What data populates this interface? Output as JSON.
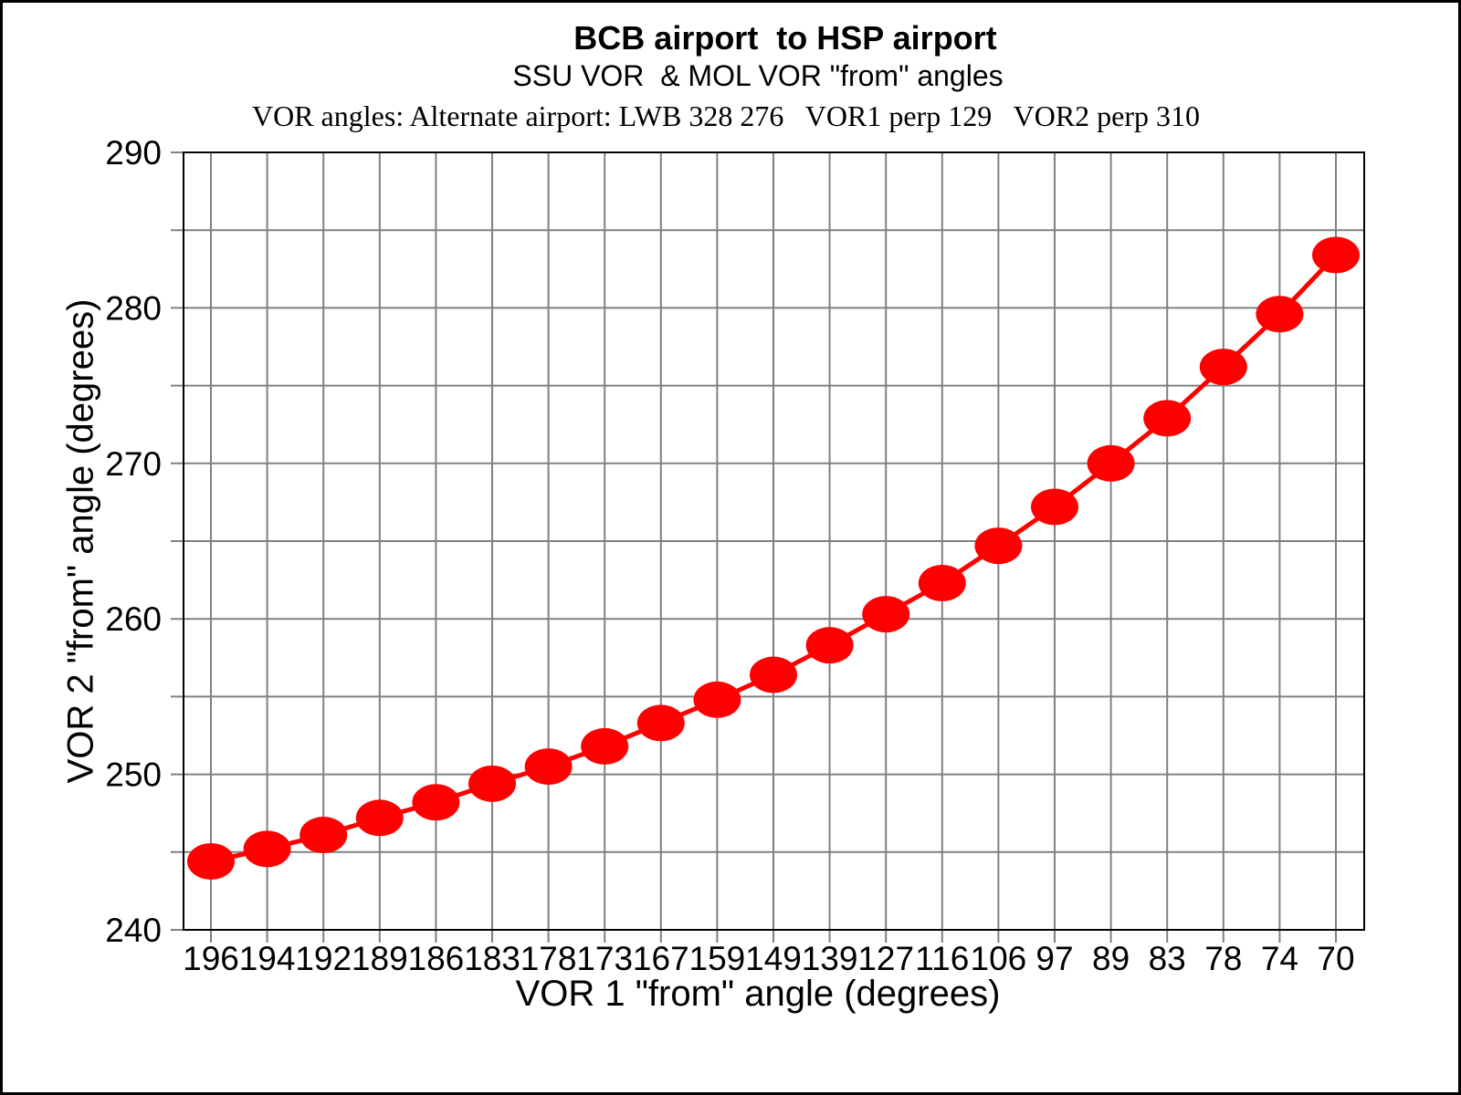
{
  "page": {
    "background_color": "#ffffff",
    "border_color": "#000000"
  },
  "header": {
    "title": "BCB airport  to HSP airport",
    "subtitle": "SSU VOR  & MOL VOR \"from\" angles",
    "info_line": "VOR angles: Alternate airport: LWB 328 276   VOR1 perp 129   VOR2 perp 310"
  },
  "chart_data": {
    "type": "line",
    "title": "BCB airport  to HSP airport",
    "subtitle": "SSU VOR  & MOL VOR \"from\" angles",
    "annotation": "VOR angles: Alternate airport: LWB 328 276   VOR1 perp 129   VOR2 perp 310",
    "xlabel": "VOR 1 \"from\" angle (degrees)",
    "ylabel": "VOR 2 \"from\" angle (degrees)",
    "categories": [
      "196",
      "194",
      "192",
      "189",
      "186",
      "183",
      "178",
      "173",
      "167",
      "159",
      "149",
      "139",
      "127",
      "116",
      "106",
      "97",
      "89",
      "83",
      "78",
      "74",
      "70"
    ],
    "values": [
      244.4,
      245.2,
      246.1,
      247.2,
      248.2,
      249.4,
      250.5,
      251.8,
      253.3,
      254.8,
      256.4,
      258.3,
      260.3,
      262.3,
      264.7,
      267.2,
      270.0,
      272.9,
      276.2,
      279.6,
      283.4
    ],
    "ylim": [
      240,
      290
    ],
    "y_tick_labels": [
      "240",
      "250",
      "260",
      "270",
      "280",
      "290"
    ],
    "y_label_interval": 10,
    "y_grid_interval": 5,
    "grid": true,
    "legend_position": "none",
    "marker": "ellipse",
    "series_color": "#ff0000",
    "grid_color": "#808080",
    "frame_color": "#000000"
  }
}
